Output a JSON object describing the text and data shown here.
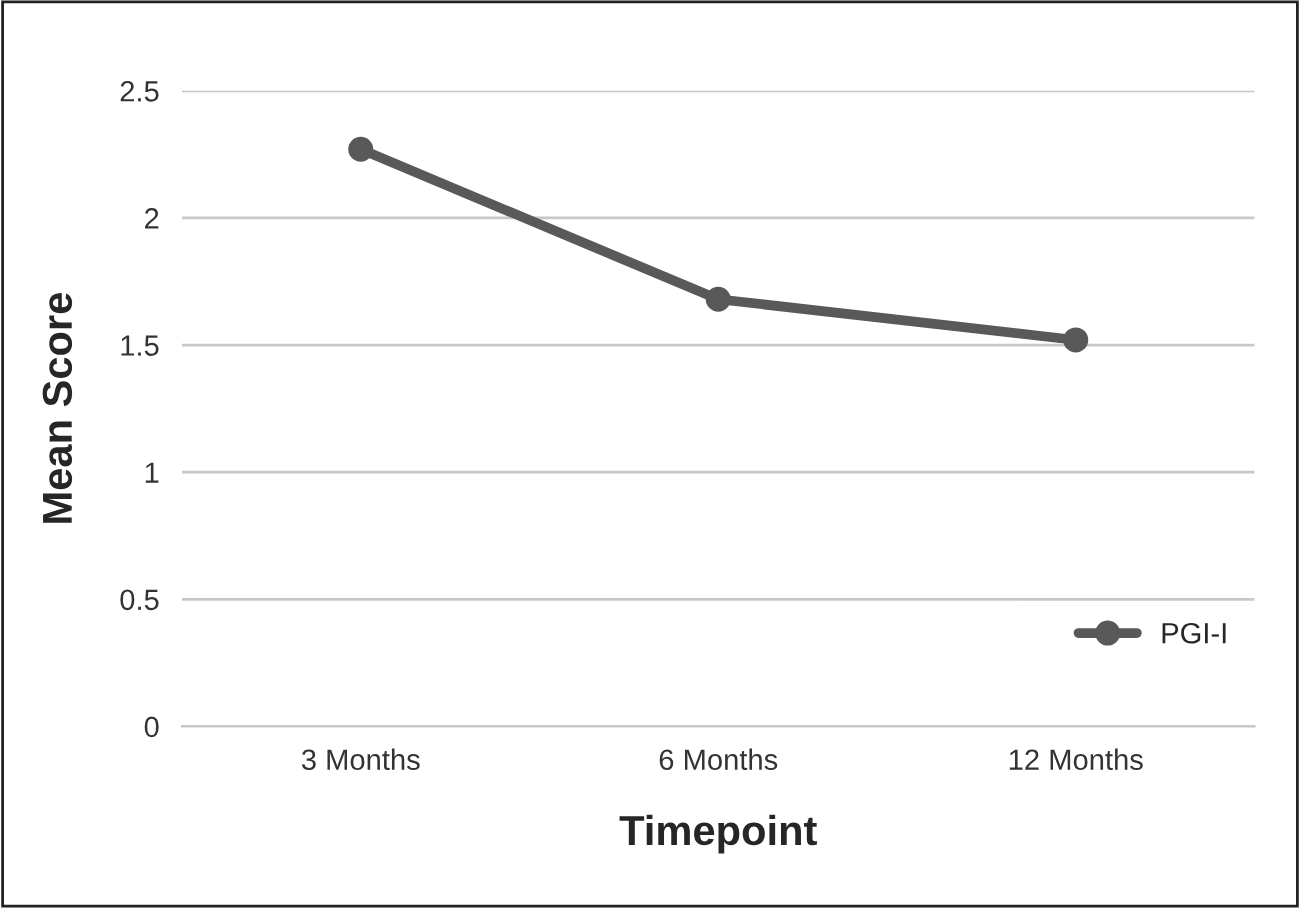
{
  "chart_data": {
    "type": "line",
    "xlabel": "Timepoint",
    "ylabel": "Mean Score",
    "categories": [
      "3 Months",
      "6 Months",
      "12 Months"
    ],
    "series": [
      {
        "name": "PGI-I",
        "color": "#595959",
        "values": [
          2.27,
          1.68,
          1.52
        ]
      }
    ],
    "ylim": [
      0,
      2.5
    ],
    "yticks": [
      0,
      0.5,
      1,
      1.5,
      2,
      2.5
    ],
    "grid": "y",
    "legend": "bottom right",
    "marker": "circle",
    "line_style": "solid"
  }
}
